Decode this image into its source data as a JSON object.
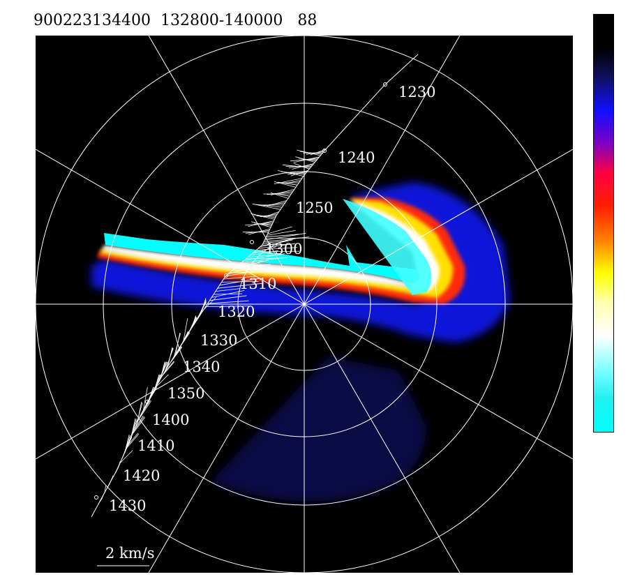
{
  "header": {
    "title": "900223134400  132800-140000   88"
  },
  "plot": {
    "background_color": "#000000",
    "grid_color": "#ffffff",
    "ring_count": 4,
    "spoke_count": 12,
    "time_labels": [
      "1230",
      "1240",
      "1250",
      "1300",
      "1310",
      "1320",
      "1330",
      "1340",
      "1350",
      "1400",
      "1410",
      "1420",
      "1430"
    ],
    "scale_label": "2 km/s"
  },
  "colorbar": {
    "colors": [
      "#000000",
      "#000000",
      "#101060",
      "#1010ff",
      "#8000c0",
      "#ff0040",
      "#ff2000",
      "#ff8000",
      "#ffff00",
      "#ffffb0",
      "#ffffff",
      "#80ffff",
      "#20f0f0",
      "#00ffff"
    ]
  }
}
